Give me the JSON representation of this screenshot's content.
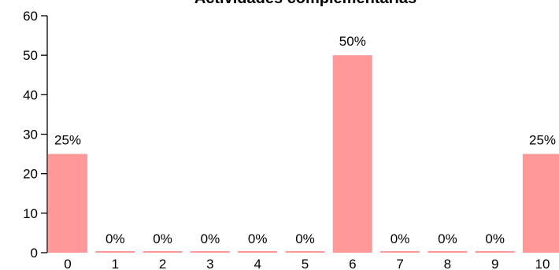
{
  "chart_data": {
    "type": "bar",
    "title": "Actividades complementarias",
    "xlabel": "",
    "ylabel": "",
    "categories": [
      "0",
      "1",
      "2",
      "3",
      "4",
      "5",
      "6",
      "7",
      "8",
      "9",
      "10"
    ],
    "values": [
      25,
      0,
      0,
      0,
      0,
      0,
      50,
      0,
      0,
      0,
      25
    ],
    "labels": [
      "25%",
      "0%",
      "0%",
      "0%",
      "0%",
      "0%",
      "50%",
      "0%",
      "0%",
      "0%",
      "25%"
    ],
    "ylim": [
      0,
      60
    ],
    "yticks": [
      "0",
      "10",
      "20",
      "30",
      "40",
      "50",
      "60"
    ],
    "grid": false,
    "bar_color": "#ff9999"
  }
}
